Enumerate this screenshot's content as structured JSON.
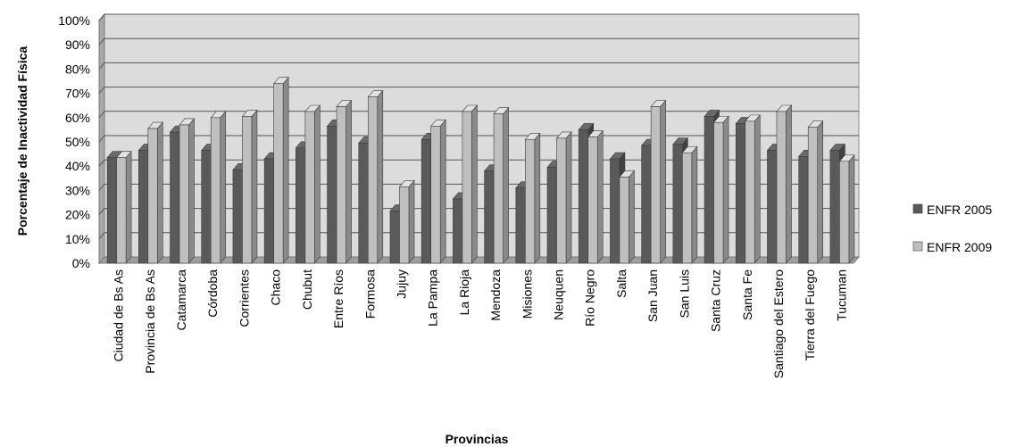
{
  "chart_data": {
    "type": "bar",
    "title": "",
    "xlabel": "Provincias",
    "ylabel": "Porcentaje de Inactividad Física",
    "ylim": [
      0,
      100
    ],
    "ytick_labels": [
      "0%",
      "10%",
      "20%",
      "30%",
      "40%",
      "50%",
      "60%",
      "70%",
      "80%",
      "90%",
      "100%"
    ],
    "grid": true,
    "legend_position": "right",
    "categories": [
      "Ciudad de Bs As",
      "Provincia de Bs As",
      "Catamarca",
      "Córdoba",
      "Corrientes",
      "Chaco",
      "Chubut",
      "Entre Ríos",
      "Formosa",
      "Jujuy",
      "La Pampa",
      "La Rioja",
      "Mendoza",
      "Misiones",
      "Neuquen",
      "Río Negro",
      "Salta",
      "San Juan",
      "San Luis",
      "Santa Cruz",
      "Santa Fe",
      "Santiago del Estero",
      "Tierra del Fuego",
      "Tucuman"
    ],
    "series": [
      {
        "name": "ENFR 2005",
        "color": "#5a5a5a",
        "values": [
          43.5,
          46.5,
          54,
          46.5,
          38.5,
          43,
          47.5,
          56.5,
          49.5,
          21.5,
          51,
          26.5,
          38,
          31,
          39.5,
          55,
          43,
          48.5,
          49,
          60.5,
          57.5,
          46.5,
          44,
          46.5
        ]
      },
      {
        "name": "ENFR 2009",
        "color": "#bfbfbf",
        "values": [
          43.5,
          55.5,
          57,
          60,
          60.5,
          74,
          62.5,
          64.5,
          68.5,
          31.5,
          56.5,
          62.5,
          61.5,
          51,
          51.5,
          52,
          35.5,
          64.5,
          45.5,
          58,
          58.5,
          62.5,
          56,
          42
        ]
      }
    ]
  }
}
